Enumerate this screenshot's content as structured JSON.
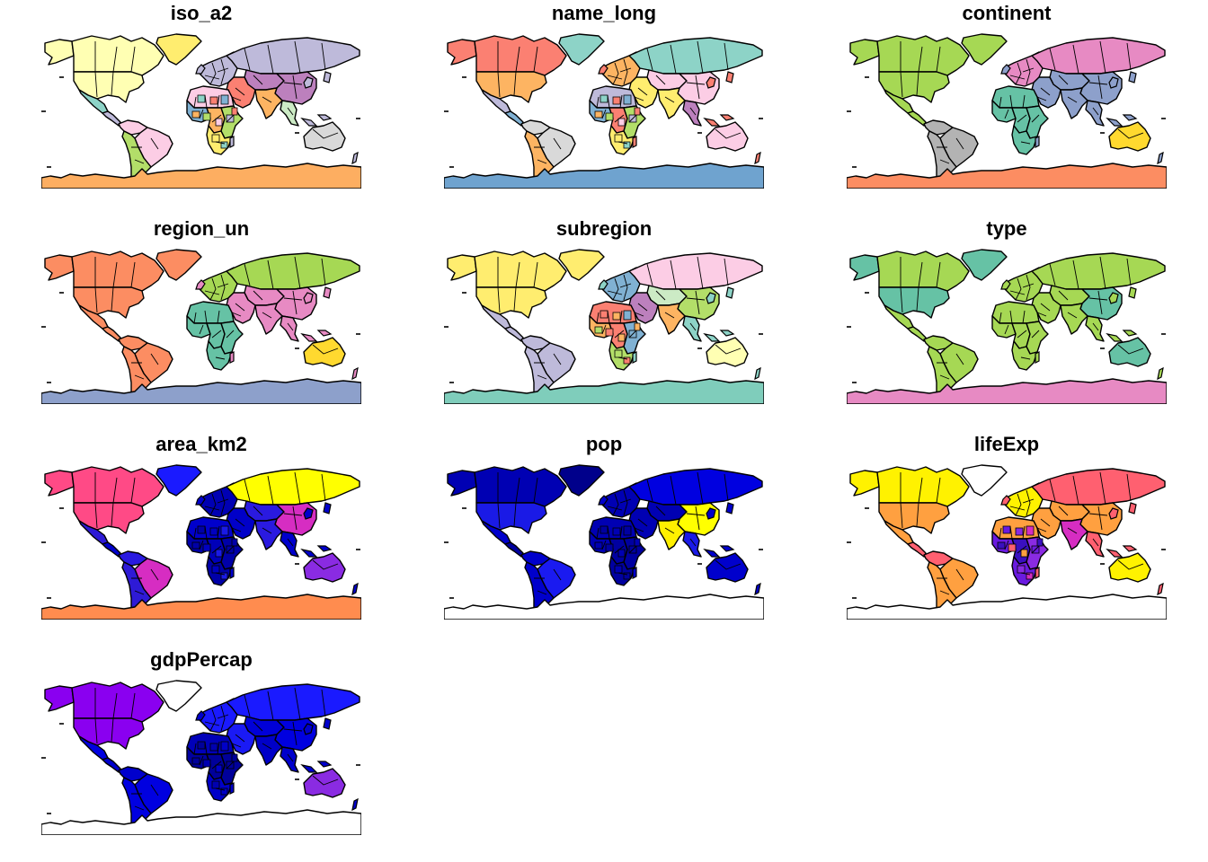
{
  "panels": [
    {
      "title": "iso_a2",
      "colors": {
        "antarctica": "#FDAE61",
        "canada": "#FFFFB3",
        "usa": "#FFFFB3",
        "greenland": "#FFED6F",
        "alaska": "#FFFFB3",
        "mexico": "#8DD3C7",
        "central_america": "#BEBADA",
        "south_america_north": "#FCCDE5",
        "brazil": "#FCCDE5",
        "south_america_south": "#B3DE69",
        "europe": "#BEBADA",
        "russia": "#BEBADA",
        "middle_east": "#FB8072",
        "north_africa": "#FCCDE5",
        "west_africa": "#80B1D3",
        "central_africa": "#FDB462",
        "east_africa": "#B3DE69",
        "south_africa": "#FFED6F",
        "central_asia": "#BC80BD",
        "south_asia": "#FDB462",
        "china": "#BC80BD",
        "southeast_asia": "#CCEBC5",
        "australia": "#D9D9D9",
        "islands": "#BEBADA",
        "mixed_africa": [
          "#8DD3C7",
          "#FB8072",
          "#80B1D3",
          "#FDB462",
          "#B3DE69",
          "#FCCDE5",
          "#BEBADA",
          "#FFED6F"
        ]
      }
    },
    {
      "title": "name_long",
      "colors": {
        "antarctica": "#6FA3CF",
        "canada": "#FB8072",
        "usa": "#FDB462",
        "greenland": "#8DD3C7",
        "alaska": "#FB8072",
        "mexico": "#BEBADA",
        "central_america": "#80B1D3",
        "south_america_north": "#D9D9D9",
        "brazil": "#D9D9D9",
        "south_america_south": "#FDB462",
        "europe": "#FDB462",
        "russia": "#8DD3C7",
        "middle_east": "#FFED6F",
        "north_africa": "#BEBADA",
        "west_africa": "#80B1D3",
        "central_africa": "#FB8072",
        "east_africa": "#B3DE69",
        "south_africa": "#FFED6F",
        "central_asia": "#FCCDE5",
        "south_asia": "#FFED6F",
        "china": "#FCCDE5",
        "southeast_asia": "#BC80BD",
        "australia": "#FCCDE5",
        "islands": "#FB8072",
        "mixed_africa": [
          "#8DD3C7",
          "#FB8072",
          "#80B1D3",
          "#FDB462",
          "#B3DE69",
          "#FCCDE5",
          "#BEBADA",
          "#FFED6F"
        ]
      }
    },
    {
      "title": "continent",
      "colors": {
        "antarctica": "#FC8D62",
        "canada": "#A6D854",
        "usa": "#A6D854",
        "greenland": "#A6D854",
        "alaska": "#A6D854",
        "mexico": "#A6D854",
        "central_america": "#A6D854",
        "south_america_north": "#B3B3B3",
        "brazil": "#B3B3B3",
        "south_america_south": "#B3B3B3",
        "europe": "#E78AC3",
        "russia": "#E78AC3",
        "middle_east": "#8DA0CB",
        "north_africa": "#66C2A5",
        "west_africa": "#66C2A5",
        "central_africa": "#66C2A5",
        "east_africa": "#66C2A5",
        "south_africa": "#66C2A5",
        "central_asia": "#8DA0CB",
        "south_asia": "#8DA0CB",
        "china": "#8DA0CB",
        "southeast_asia": "#8DA0CB",
        "australia": "#FFD92F",
        "islands": "#8DA0CB",
        "mixed_africa": [
          "#66C2A5"
        ]
      }
    },
    {
      "title": "region_un",
      "colors": {
        "antarctica": "#8DA0CB",
        "canada": "#FC8D62",
        "usa": "#FC8D62",
        "greenland": "#FC8D62",
        "alaska": "#FC8D62",
        "mexico": "#FC8D62",
        "central_america": "#FC8D62",
        "south_america_north": "#FC8D62",
        "brazil": "#FC8D62",
        "south_america_south": "#FC8D62",
        "europe": "#A6D854",
        "russia": "#A6D854",
        "middle_east": "#E78AC3",
        "north_africa": "#66C2A5",
        "west_africa": "#66C2A5",
        "central_africa": "#66C2A5",
        "east_africa": "#66C2A5",
        "south_africa": "#66C2A5",
        "central_asia": "#E78AC3",
        "south_asia": "#E78AC3",
        "china": "#E78AC3",
        "southeast_asia": "#E78AC3",
        "australia": "#FFD92F",
        "islands": "#E78AC3",
        "mixed_africa": [
          "#66C2A5"
        ]
      }
    },
    {
      "title": "subregion",
      "colors": {
        "antarctica": "#7FCDBB",
        "canada": "#FFED6F",
        "usa": "#FFED6F",
        "greenland": "#FFED6F",
        "alaska": "#FFED6F",
        "mexico": "#BEBADA",
        "central_america": "#BEBADA",
        "south_america_north": "#BEBADA",
        "brazil": "#BEBADA",
        "south_america_south": "#BEBADA",
        "europe": "#80B1D3",
        "russia": "#FCCDE5",
        "middle_east": "#BC80BD",
        "north_africa": "#FB8072",
        "west_africa": "#FDB462",
        "central_africa": "#FB8072",
        "east_africa": "#80B1D3",
        "south_africa": "#B3DE69",
        "central_asia": "#CCEBC5",
        "south_asia": "#FDB462",
        "china": "#B3DE69",
        "southeast_asia": "#8DD3C7",
        "australia": "#FFFFB3",
        "islands": "#8DD3C7",
        "mixed_africa": [
          "#FB8072",
          "#FDB462",
          "#80B1D3",
          "#B3DE69"
        ]
      }
    },
    {
      "title": "type",
      "colors": {
        "antarctica": "#E78AC3",
        "canada": "#A6D854",
        "usa": "#66C2A5",
        "greenland": "#66C2A5",
        "alaska": "#66C2A5",
        "mexico": "#A6D854",
        "central_america": "#A6D854",
        "south_america_north": "#A6D854",
        "brazil": "#A6D854",
        "south_america_south": "#A6D854",
        "europe": "#A6D854",
        "russia": "#A6D854",
        "middle_east": "#A6D854",
        "north_africa": "#A6D854",
        "west_africa": "#A6D854",
        "central_africa": "#A6D854",
        "east_africa": "#A6D854",
        "south_africa": "#A6D854",
        "central_asia": "#A6D854",
        "south_asia": "#A6D854",
        "china": "#66C2A5",
        "southeast_asia": "#A6D854",
        "australia": "#66C2A5",
        "islands": "#A6D854",
        "mixed_africa": [
          "#A6D854"
        ]
      }
    },
    {
      "title": "area_km2",
      "colors": {
        "antarctica": "#FF8C4F",
        "canada": "#FF4A86",
        "usa": "#FF4A86",
        "greenland": "#1A1AFF",
        "alaska": "#FF4A86",
        "mexico": "#2E1AD6",
        "central_america": "#0000CC",
        "south_america_north": "#2A1AE0",
        "brazil": "#D62DC2",
        "south_america_south": "#2E1AD6",
        "europe": "#0000B3",
        "russia": "#FFFF00",
        "middle_east": "#0000C8",
        "north_africa": "#0000CC",
        "west_africa": "#0000A8",
        "central_africa": "#0000B8",
        "east_africa": "#0000A8",
        "south_africa": "#0000A8",
        "central_asia": "#2A1AE0",
        "south_asia": "#2A1AE0",
        "china": "#D62DC2",
        "southeast_asia": "#0000CC",
        "australia": "#8A2BE2",
        "islands": "#0000CC",
        "mixed_africa": [
          "#0000A8",
          "#0000C0",
          "#1A1AE6"
        ]
      }
    },
    {
      "title": "pop",
      "colors": {
        "antarctica": "#FFFFFF",
        "canada": "#0000B3",
        "usa": "#1A1AE6",
        "greenland": "#00008B",
        "alaska": "#0000B3",
        "mexico": "#0000CC",
        "central_america": "#00009E",
        "south_america_north": "#0000CC",
        "brazil": "#1A1AF0",
        "south_america_south": "#0000CC",
        "europe": "#0000B3",
        "russia": "#0000E0",
        "middle_east": "#0000B3",
        "north_africa": "#0000B3",
        "west_africa": "#0000B3",
        "central_africa": "#0000A0",
        "east_africa": "#0000A0",
        "south_africa": "#0000A0",
        "central_asia": "#0000B3",
        "south_asia": "#FFF000",
        "china": "#FFFF00",
        "southeast_asia": "#1A1AE6",
        "australia": "#0000CC",
        "islands": "#0000CC",
        "mixed_africa": [
          "#0000A0",
          "#0000B3"
        ]
      }
    },
    {
      "title": "lifeExp",
      "colors": {
        "antarctica": "#FFFFFF",
        "canada": "#FFF200",
        "usa": "#FFA040",
        "greenland": "#FFFFFF",
        "alaska": "#FFF200",
        "mexico": "#FFA040",
        "central_america": "#FF6070",
        "south_america_north": "#FF6070",
        "brazil": "#FFA040",
        "south_america_south": "#FFA040",
        "europe": "#FFF200",
        "russia": "#FF6070",
        "middle_east": "#FFA040",
        "north_africa": "#FFA040",
        "west_africa": "#6A1AE0",
        "central_africa": "#3A10C0",
        "east_africa": "#8A2BE2",
        "south_africa": "#6A1AE0",
        "central_asia": "#FFA040",
        "south_asia": "#D62DC2",
        "china": "#FFA040",
        "southeast_asia": "#FF6070",
        "australia": "#FFF200",
        "islands": "#FF6070",
        "mixed_africa": [
          "#6A1AE0",
          "#8A2BE2",
          "#D62DC2",
          "#3A10C0",
          "#FF6070",
          "#FFA040"
        ]
      }
    },
    {
      "title": "gdpPercap",
      "colors": {
        "antarctica": "#FFFFFF",
        "canada": "#8A00F0",
        "usa": "#8A00F0",
        "greenland": "#FFFFFF",
        "alaska": "#8A00F0",
        "mexico": "#0000E0",
        "central_america": "#0000CC",
        "south_america_north": "#0000CC",
        "brazil": "#0000E0",
        "south_america_south": "#0000E0",
        "europe": "#1A1AFF",
        "russia": "#1A1AFF",
        "middle_east": "#1A1AF5",
        "north_africa": "#0000B8",
        "west_africa": "#0000A0",
        "central_africa": "#00009A",
        "east_africa": "#00009A",
        "south_africa": "#0000C8",
        "central_asia": "#0000D8",
        "south_asia": "#0000C8",
        "china": "#0000E0",
        "southeast_asia": "#0000CC",
        "australia": "#8A2BE2",
        "islands": "#0000CC",
        "mixed_africa": [
          "#00009A",
          "#0000B0",
          "#0000C8"
        ]
      }
    }
  ]
}
